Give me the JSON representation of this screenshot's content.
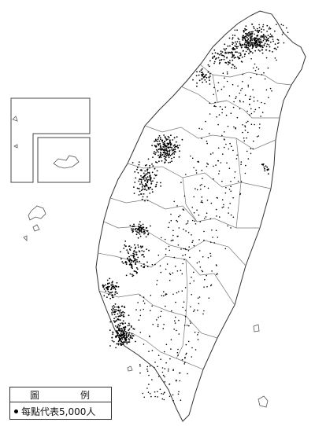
{
  "legend": {
    "title_left": "圖",
    "title_right": "例",
    "entry": "每點代表5,000人"
  },
  "colors": {
    "dot": "#000000",
    "boundary": "#555555",
    "background": "#ffffff"
  }
}
